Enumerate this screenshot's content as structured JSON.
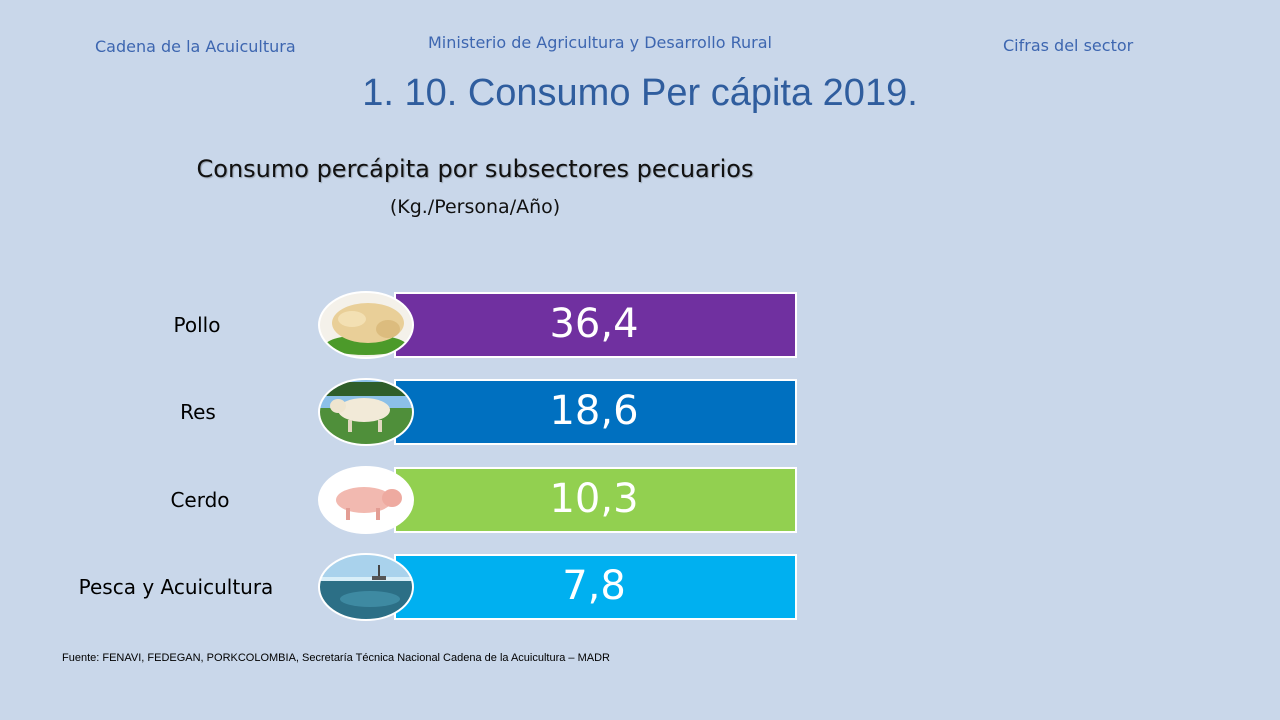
{
  "header": {
    "left": "Cadena de la Acuicultura",
    "center": "Ministerio de Agricultura y Desarrollo Rural",
    "right": "Cifras del sector"
  },
  "page_title": "1. 10. Consumo Per cápita 2019.",
  "source": "Fuente: FENAVI, FEDEGAN, PORKCOLOMBIA,  Secretaría Técnica Nacional Cadena de la Acuicultura – MADR",
  "chart_data": {
    "type": "bar",
    "title": "Consumo percápita por subsectores pecuarios",
    "subtitle": "(Kg./Persona/Año)",
    "categories": [
      "Pollo",
      "Res",
      "Cerdo",
      "Pesca y Acuicultura"
    ],
    "values": [
      36.4,
      18.6,
      10.3,
      7.8
    ],
    "value_labels": [
      "36,4",
      "18,6",
      "10,3",
      "7,8"
    ],
    "colors": [
      "#7030a0",
      "#0070c0",
      "#92d050",
      "#00b0f0"
    ],
    "icons": [
      "chicken-photo-icon",
      "cattle-photo-icon",
      "pig-photo-icon",
      "sea-photo-icon"
    ],
    "xlabel": "",
    "ylabel": ""
  }
}
